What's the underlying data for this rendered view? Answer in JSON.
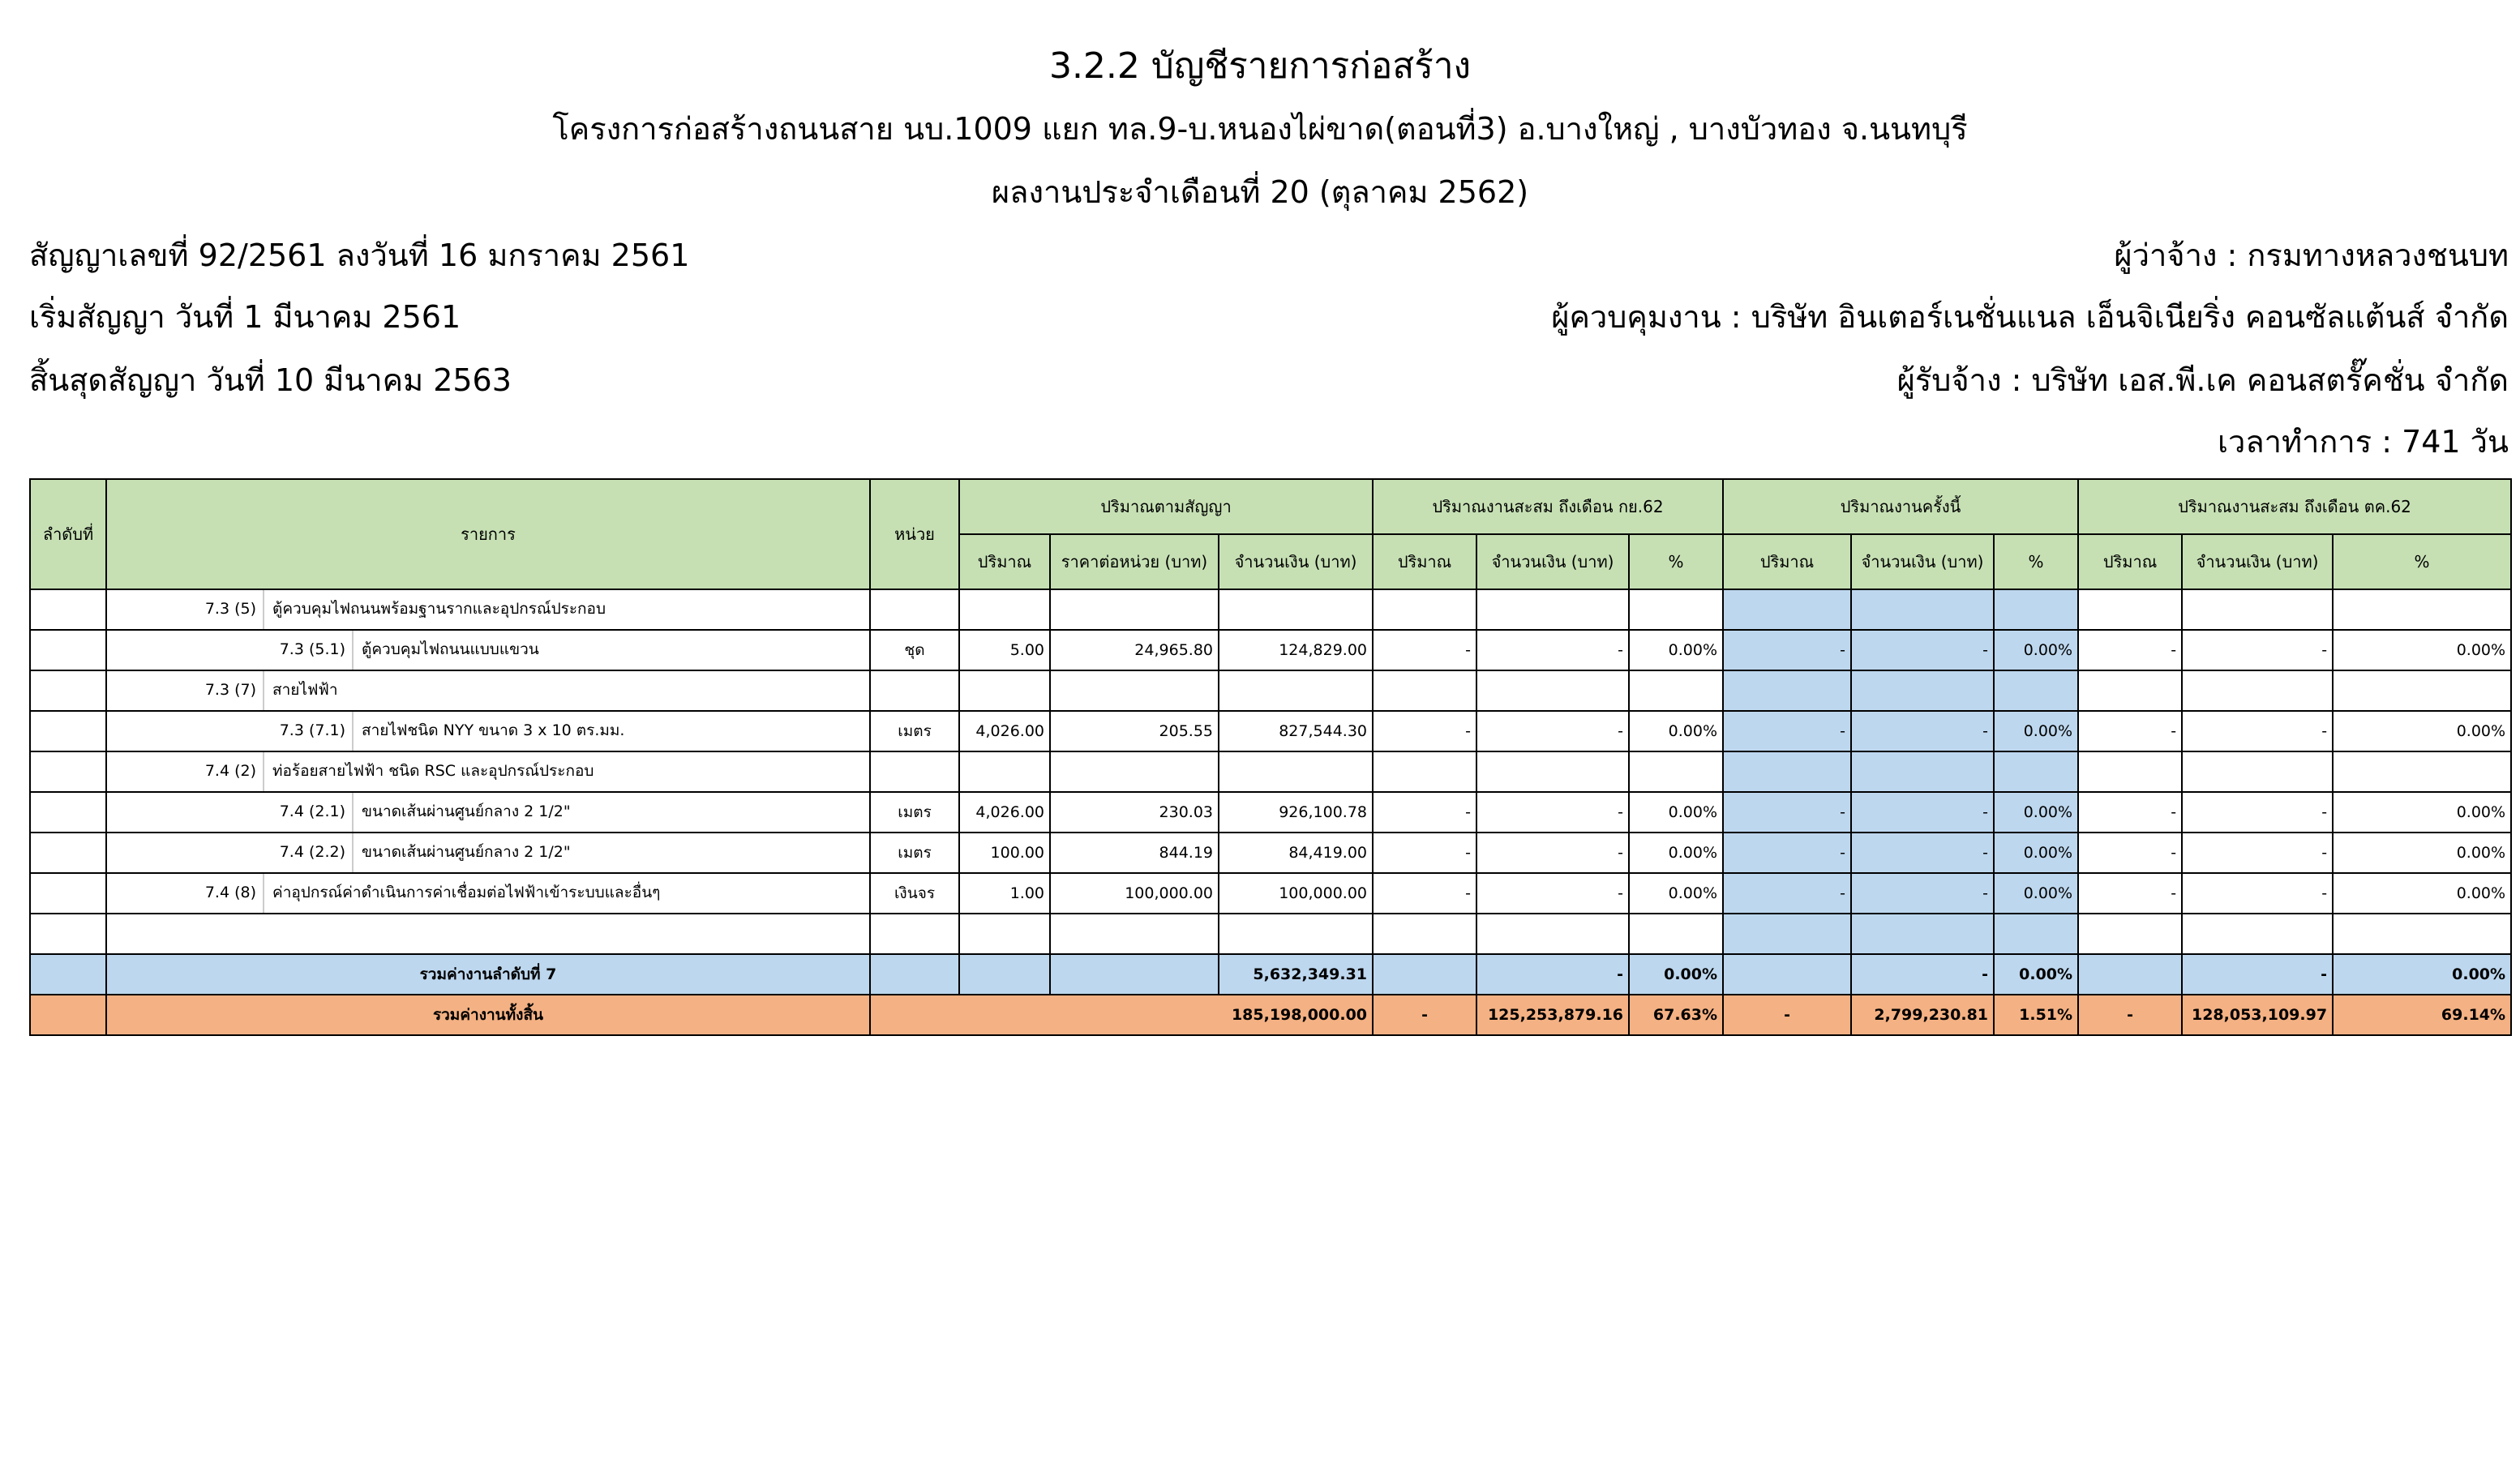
{
  "header": {
    "title": "3.2.2 บัญชีรายการก่อสร้าง",
    "project": "โครงการก่อสร้างถนนสาย นบ.1009 แยก ทล.9-บ.หนองไผ่ขาด(ตอนที่3) อ.บางใหญ่ , บางบัวทอง จ.นนทบุรี",
    "period": "ผลงานประจำเดือนที่ 20 (ตุลาคม 2562)",
    "contract_no": "สัญญาเลขที่ 92/2561 ลงวันที่ 16 มกราคม 2561",
    "start": "เริ่มสัญญา  วันที่ 1 มีนาคม 2561",
    "end": "สิ้นสุดสัญญา  วันที่ 10 มีนาคม 2563",
    "employer": "ผู้ว่าจ้าง : กรมทางหลวงชนบท",
    "supervisor": "ผู้ควบคุมงาน : บริษัท อินเตอร์เนชั่นแนล เอ็นจิเนียริ่ง คอนซัลแต้นส์ จำกัด",
    "contractor": "ผู้รับจ้าง : บริษัท เอส.พี.เค คอนสตรั๊คชั่น จำกัด",
    "duration": "เวลาทำการ : 741 วัน"
  },
  "table": {
    "headers": {
      "no": "ลำดับที่",
      "item": "รายการ",
      "unit": "หน่วย",
      "g1": "ปริมาณตามสัญญา",
      "g2": "ปริมาณงานสะสม ถึงเดือน กย.62",
      "g3": "ปริมาณงานครั้งนี้",
      "g4": "ปริมาณงานสะสม ถึงเดือน ตค.62",
      "qty": "ปริมาณ",
      "unit_price": "ราคาต่อหน่วย (บาท)",
      "amount": "จำนวนเงิน (บาท)",
      "pct": "%"
    },
    "rows": [
      {
        "level": 1,
        "code": "7.3 (5)",
        "desc": "ตู้ควบคุมไฟถนนพร้อมฐานรากและอุปกรณ์ประกอบ",
        "unit": "",
        "qty": "",
        "price": "",
        "amount": "",
        "p_qty": "",
        "p_amt": "",
        "p_pct": "",
        "c_qty": "",
        "c_amt": "",
        "c_pct": "",
        "t_qty": "",
        "t_amt": "",
        "t_pct": ""
      },
      {
        "level": 2,
        "code": "7.3 (5.1)",
        "desc": "ตู้ควบคุมไฟถนนแบบแขวน",
        "unit": "ชุด",
        "qty": "5.00",
        "price": "24,965.80",
        "amount": "124,829.00",
        "p_qty": "-",
        "p_amt": "-",
        "p_pct": "0.00%",
        "c_qty": "-",
        "c_amt": "-",
        "c_pct": "0.00%",
        "t_qty": "-",
        "t_amt": "-",
        "t_pct": "0.00%"
      },
      {
        "level": 1,
        "code": "7.3 (7)",
        "desc": "สายไฟฟ้า",
        "unit": "",
        "qty": "",
        "price": "",
        "amount": "",
        "p_qty": "",
        "p_amt": "",
        "p_pct": "",
        "c_qty": "",
        "c_amt": "",
        "c_pct": "",
        "t_qty": "",
        "t_amt": "",
        "t_pct": ""
      },
      {
        "level": 2,
        "code": "7.3 (7.1)",
        "desc": "สายไฟชนิด NYY ขนาด 3 x 10 ตร.มม.",
        "unit": "เมตร",
        "qty": "4,026.00",
        "price": "205.55",
        "amount": "827,544.30",
        "p_qty": "-",
        "p_amt": "-",
        "p_pct": "0.00%",
        "c_qty": "-",
        "c_amt": "-",
        "c_pct": "0.00%",
        "t_qty": "-",
        "t_amt": "-",
        "t_pct": "0.00%"
      },
      {
        "level": 1,
        "code": "7.4 (2)",
        "desc": "ท่อร้อยสายไฟฟ้า ชนิด RSC และอุปกรณ์ประกอบ",
        "unit": "",
        "qty": "",
        "price": "",
        "amount": "",
        "p_qty": "",
        "p_amt": "",
        "p_pct": "",
        "c_qty": "",
        "c_amt": "",
        "c_pct": "",
        "t_qty": "",
        "t_amt": "",
        "t_pct": ""
      },
      {
        "level": 2,
        "code": "7.4 (2.1)",
        "desc": "ขนาดเส้นผ่านศูนย์กลาง 2 1/2\"",
        "unit": "เมตร",
        "qty": "4,026.00",
        "price": "230.03",
        "amount": "926,100.78",
        "p_qty": "-",
        "p_amt": "-",
        "p_pct": "0.00%",
        "c_qty": "-",
        "c_amt": "-",
        "c_pct": "0.00%",
        "t_qty": "-",
        "t_amt": "-",
        "t_pct": "0.00%"
      },
      {
        "level": 2,
        "code": "7.4 (2.2)",
        "desc": "ขนาดเส้นผ่านศูนย์กลาง 2 1/2\"",
        "unit": "เมตร",
        "qty": "100.00",
        "price": "844.19",
        "amount": "84,419.00",
        "p_qty": "-",
        "p_amt": "-",
        "p_pct": "0.00%",
        "c_qty": "-",
        "c_amt": "-",
        "c_pct": "0.00%",
        "t_qty": "-",
        "t_amt": "-",
        "t_pct": "0.00%"
      },
      {
        "level": 1,
        "code": "7.4 (8)",
        "desc": "ค่าอุปกรณ์ค่าดำเนินการค่าเชื่อมต่อไฟฟ้าเข้าระบบและอื่นๆ",
        "unit": "เงินจร",
        "qty": "1.00",
        "price": "100,000.00",
        "amount": "100,000.00",
        "p_qty": "-",
        "p_amt": "-",
        "p_pct": "0.00%",
        "c_qty": "-",
        "c_amt": "-",
        "c_pct": "0.00%",
        "t_qty": "-",
        "t_amt": "-",
        "t_pct": "0.00%"
      },
      {
        "level": 0,
        "code": "",
        "desc": "",
        "unit": "",
        "qty": "",
        "price": "",
        "amount": "",
        "p_qty": "",
        "p_amt": "",
        "p_pct": "",
        "c_qty": "",
        "c_amt": "",
        "c_pct": "",
        "t_qty": "",
        "t_amt": "",
        "t_pct": ""
      }
    ],
    "subtotal": {
      "label": "รวมค่างานลำดับที่ 7",
      "amount": "5,632,349.31",
      "p_amt": "-",
      "p_pct": "0.00%",
      "c_amt": "-",
      "c_pct": "0.00%",
      "t_amt": "-",
      "t_pct": "0.00%"
    },
    "total": {
      "label": "รวมค่างานทั้งสิ้น",
      "amount": "185,198,000.00",
      "p_qty": "-",
      "p_amt": "125,253,879.16",
      "p_pct": "67.63%",
      "c_qty": "-",
      "c_amt": "2,799,230.81",
      "c_pct": "1.51%",
      "t_qty": "-",
      "t_amt": "128,053,109.97",
      "t_pct": "69.14%"
    }
  },
  "colors": {
    "header_green": "#c6e0b4",
    "current_blue": "#bdd7ee",
    "total_orange": "#f4b183"
  }
}
